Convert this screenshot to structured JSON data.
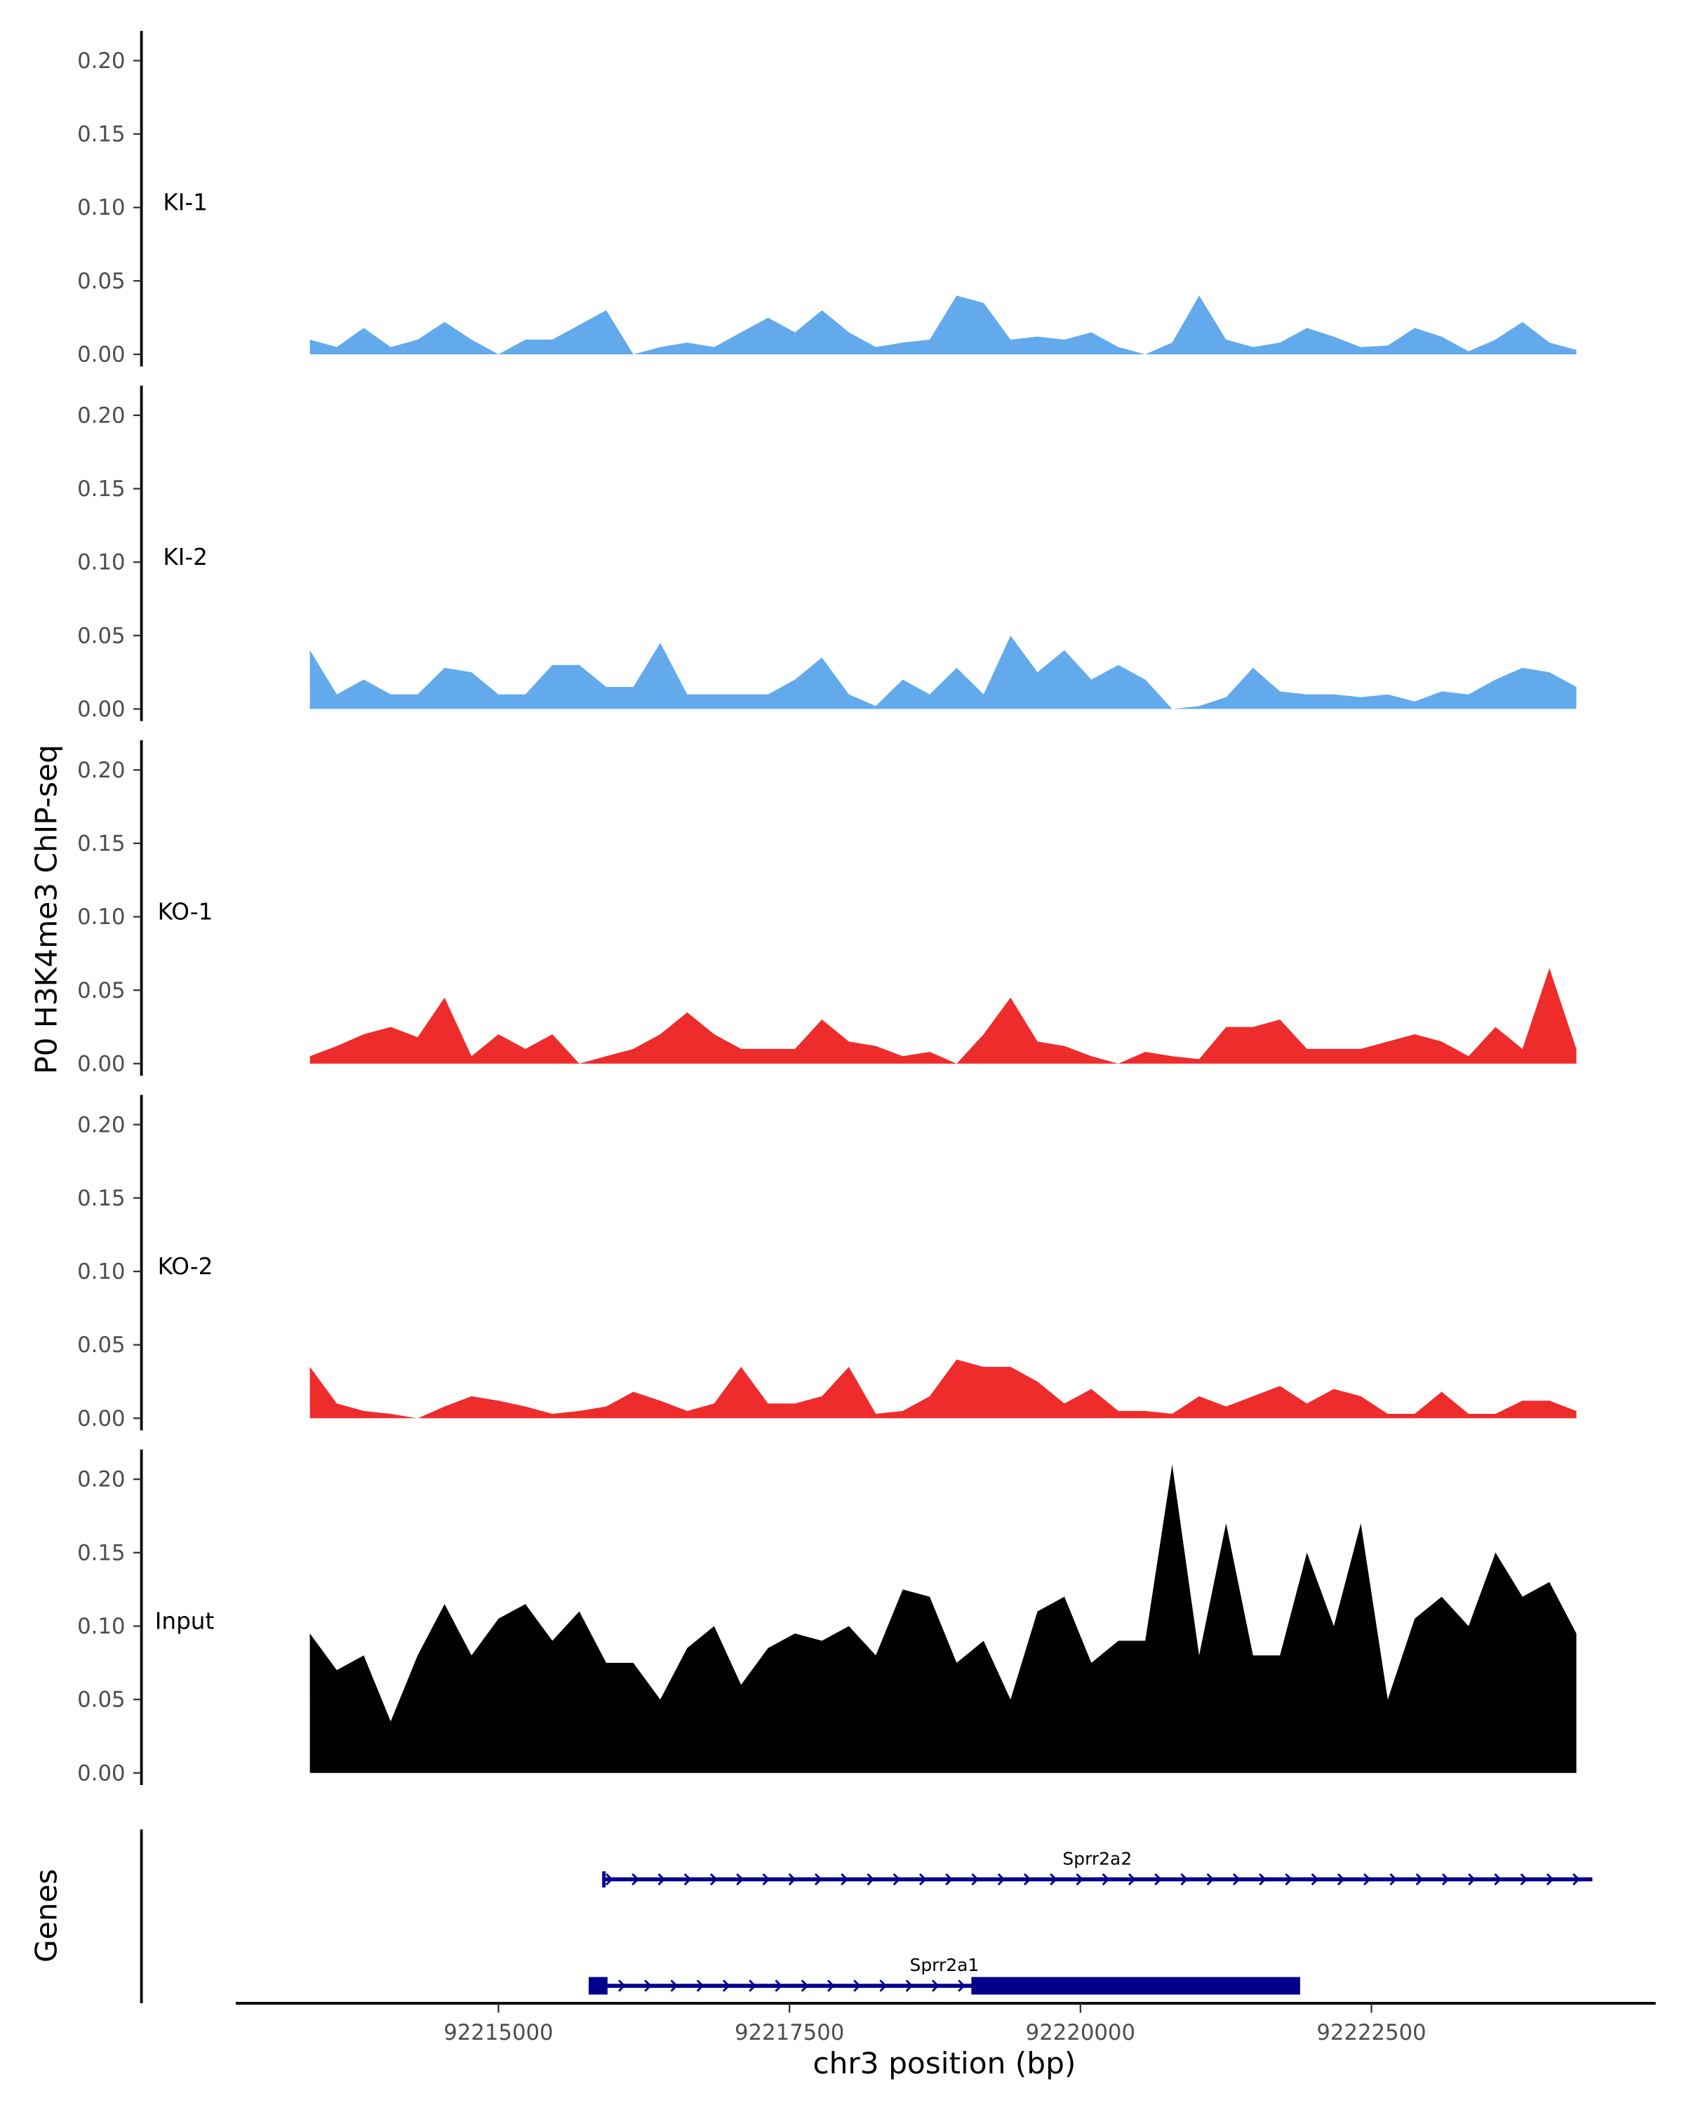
{
  "chart_data": {
    "type": "area",
    "ylabel": "P0 H3K4me3 ChIP-seq",
    "xlabel": "chr3 position (bp)",
    "xlim": [
      92212000,
      92224800
    ],
    "x_ticks": [
      92215000,
      92217500,
      92220000,
      92222500
    ],
    "x_tick_labels": [
      "92215000",
      "92217500",
      "92220000",
      "92222500"
    ],
    "ylim": [
      0,
      0.22
    ],
    "y_ticks": [
      0,
      0.05,
      0.1,
      0.15,
      0.2
    ],
    "y_tick_labels": [
      "0.00",
      "0.05",
      "0.10",
      "0.15",
      "0.20"
    ],
    "grid": false,
    "x_start": 92213380,
    "x_step": 231.5,
    "series": [
      {
        "name": "KI-1",
        "color": "#62AAEC",
        "values": [
          0.01,
          0.005,
          0.018,
          0.005,
          0.01,
          0.022,
          0.01,
          0,
          0.01,
          0.01,
          0.02,
          0.03,
          0,
          0.005,
          0.008,
          0.005,
          0.015,
          0.025,
          0.015,
          0.03,
          0.015,
          0.005,
          0.008,
          0.01,
          0.04,
          0.035,
          0.01,
          0.012,
          0.01,
          0.015,
          0.005,
          0,
          0.008,
          0.04,
          0.01,
          0.005,
          0.008,
          0.018,
          0.012,
          0.005,
          0.006,
          0.018,
          0.012,
          0.002,
          0.01,
          0.022,
          0.008,
          0.003
        ]
      },
      {
        "name": "KI-2",
        "color": "#62AAEC",
        "values": [
          0.04,
          0.01,
          0.02,
          0.01,
          0.01,
          0.028,
          0.025,
          0.01,
          0.01,
          0.03,
          0.03,
          0.015,
          0.015,
          0.045,
          0.01,
          0.01,
          0.01,
          0.01,
          0.02,
          0.035,
          0.01,
          0.002,
          0.02,
          0.01,
          0.028,
          0.01,
          0.05,
          0.025,
          0.04,
          0.02,
          0.03,
          0.02,
          0,
          0.002,
          0.008,
          0.028,
          0.012,
          0.01,
          0.01,
          0.008,
          0.01,
          0.005,
          0.012,
          0.01,
          0.02,
          0.028,
          0.025,
          0.015
        ]
      },
      {
        "name": "KO-1",
        "color": "#EE2C2C",
        "values": [
          0.005,
          0.012,
          0.02,
          0.025,
          0.018,
          0.045,
          0.005,
          0.02,
          0.01,
          0.02,
          0,
          0.005,
          0.01,
          0.02,
          0.035,
          0.02,
          0.01,
          0.01,
          0.01,
          0.03,
          0.015,
          0.012,
          0.005,
          0.008,
          0,
          0.02,
          0.045,
          0.015,
          0.012,
          0.005,
          0,
          0.008,
          0.005,
          0.003,
          0.025,
          0.025,
          0.03,
          0.01,
          0.01,
          0.01,
          0.015,
          0.02,
          0.015,
          0.005,
          0.025,
          0.01,
          0.065,
          0.01
        ]
      },
      {
        "name": "KO-2",
        "color": "#EE2C2C",
        "values": [
          0.035,
          0.01,
          0.005,
          0.003,
          0,
          0.008,
          0.015,
          0.012,
          0.008,
          0.003,
          0.005,
          0.008,
          0.018,
          0.012,
          0.005,
          0.01,
          0.035,
          0.01,
          0.01,
          0.015,
          0.035,
          0.003,
          0.005,
          0.015,
          0.04,
          0.035,
          0.035,
          0.025,
          0.01,
          0.02,
          0.005,
          0.005,
          0.003,
          0.015,
          0.008,
          0.015,
          0.022,
          0.01,
          0.02,
          0.015,
          0.003,
          0.003,
          0.018,
          0.003,
          0.003,
          0.012,
          0.012,
          0.005
        ]
      },
      {
        "name": "Input",
        "color": "#000000",
        "values": [
          0.095,
          0.07,
          0.08,
          0.035,
          0.08,
          0.115,
          0.08,
          0.105,
          0.115,
          0.09,
          0.11,
          0.075,
          0.075,
          0.05,
          0.085,
          0.1,
          0.06,
          0.085,
          0.095,
          0.09,
          0.1,
          0.08,
          0.125,
          0.12,
          0.075,
          0.09,
          0.05,
          0.11,
          0.12,
          0.075,
          0.09,
          0.09,
          0.21,
          0.08,
          0.17,
          0.08,
          0.08,
          0.15,
          0.1,
          0.17,
          0.05,
          0.105,
          0.12,
          0.1,
          0.15,
          0.12,
          0.13,
          0.095
        ]
      }
    ],
    "genes_track": {
      "label": "Genes",
      "color": "#00008B",
      "genes": [
        {
          "name": "Sprr2a2",
          "start": 92215891,
          "end": 92224398,
          "strand": "+",
          "exons": [
            [
              92215891,
              92215920
            ]
          ]
        },
        {
          "name": "Sprr2a1",
          "start": 92215775,
          "end": 92221887,
          "strand": "+",
          "exons": [
            [
              92215775,
              92215937
            ],
            [
              92219063,
              92221887
            ]
          ]
        }
      ]
    }
  }
}
